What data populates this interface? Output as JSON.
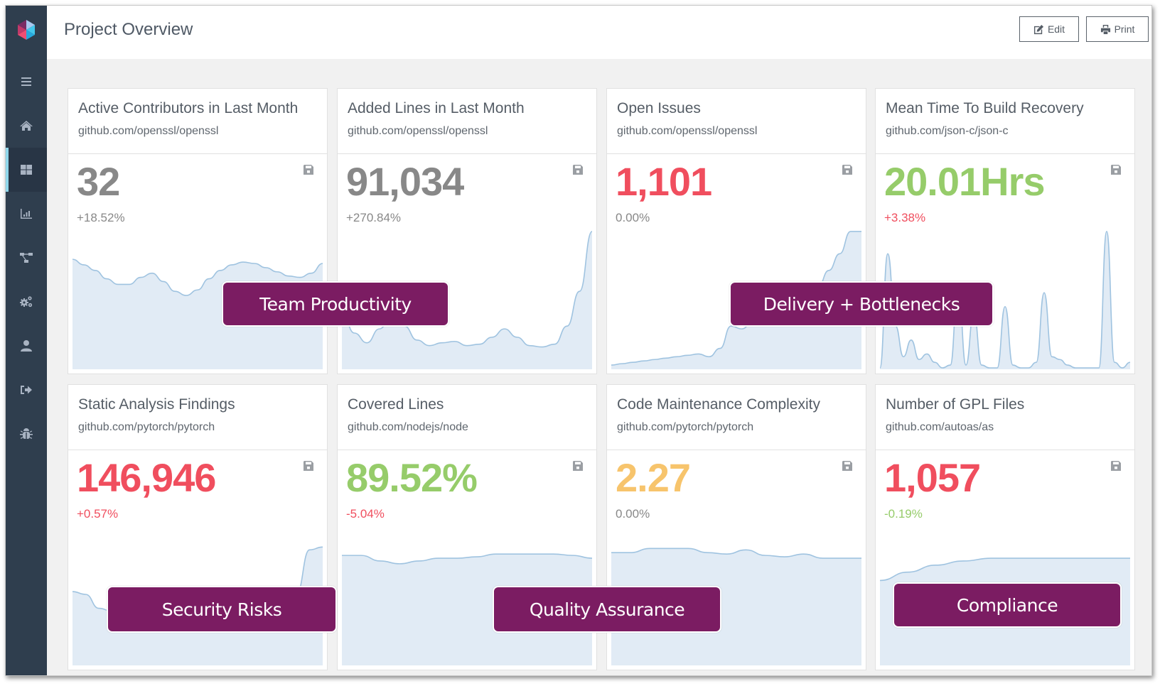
{
  "header": {
    "title": "Project Overview",
    "edit_label": "Edit",
    "print_label": "Print"
  },
  "sidebar": {
    "items": [
      {
        "name": "menu",
        "icon": "hamburger-menu-icon",
        "active": false
      },
      {
        "name": "home",
        "icon": "home-icon",
        "active": false
      },
      {
        "name": "dashboard",
        "icon": "dashboard-grid-icon",
        "active": true
      },
      {
        "name": "analytics",
        "icon": "bar-chart-icon",
        "active": false
      },
      {
        "name": "hierarchy",
        "icon": "sitemap-icon",
        "active": false
      },
      {
        "name": "settings",
        "icon": "gears-icon",
        "active": false
      },
      {
        "name": "user",
        "icon": "user-icon",
        "active": false
      },
      {
        "name": "logout",
        "icon": "sign-out-icon",
        "active": false
      },
      {
        "name": "debug",
        "icon": "bug-icon",
        "active": false
      }
    ]
  },
  "colors": {
    "sidebar_bg": "#2f3e4e",
    "active_indicator": "#8fd6ea",
    "neutral": "#888888",
    "red": "#f04e5e",
    "green": "#96cc6a",
    "orange": "#f7c46c",
    "spark_line": "#9fc3e0",
    "spark_fill": "#e1ebf5",
    "overlay": "#7b1c62"
  },
  "cards": [
    {
      "title": "Active Contributors in Last Month",
      "repo": "github.com/openssl/openssl",
      "value": "32",
      "value_color": "neutral",
      "delta": "+18.52%",
      "delta_color": "neutral",
      "series": [
        0.78,
        0.74,
        0.7,
        0.64,
        0.6,
        0.6,
        0.65,
        0.68,
        0.62,
        0.55,
        0.52,
        0.56,
        0.64,
        0.7,
        0.74,
        0.76,
        0.75,
        0.72,
        0.69,
        0.66,
        0.65,
        0.68,
        0.75
      ]
    },
    {
      "title": "Added Lines in Last Month",
      "repo": "github.com/openssl/openssl",
      "value": "91,034",
      "value_color": "neutral",
      "delta": "+270.84%",
      "delta_color": "neutral",
      "series": [
        0.4,
        0.25,
        0.18,
        0.28,
        0.38,
        0.3,
        0.2,
        0.16,
        0.18,
        0.19,
        0.16,
        0.17,
        0.22,
        0.28,
        0.22,
        0.16,
        0.15,
        0.17,
        0.3,
        0.55,
        0.98
      ]
    },
    {
      "title": "Open Issues",
      "repo": "github.com/openssl/openssl",
      "value": "1,101",
      "value_color": "red",
      "delta": "0.00%",
      "delta_color": "neutral",
      "series": [
        0.02,
        0.03,
        0.04,
        0.05,
        0.06,
        0.07,
        0.08,
        0.09,
        0.1,
        0.08,
        0.14,
        0.3,
        0.28,
        0.33,
        0.38,
        0.4,
        0.36,
        0.42,
        0.5,
        0.58,
        0.7,
        0.82,
        0.98,
        0.98
      ]
    },
    {
      "title": "Mean Time To Build Recovery",
      "repo": "github.com/json-c/json-c",
      "value": "20.01Hrs",
      "value_color": "green",
      "delta": "+3.38%",
      "delta_color": "red",
      "series": [
        0.0,
        0.82,
        0.3,
        0.08,
        0.2,
        0.06,
        0.1,
        0.04,
        0.0,
        0.02,
        0.6,
        0.02,
        0.4,
        0.02,
        0.0,
        0.0,
        0.44,
        0.02,
        0.0,
        0.0,
        0.04,
        0.54,
        0.08,
        0.06,
        0.02,
        0.0,
        0.0,
        0.0,
        0.0,
        0.98,
        0.04,
        0.0,
        0.04
      ]
    },
    {
      "title": "Static Analysis Findings",
      "repo": "github.com/pytorch/pytorch",
      "value": "146,946",
      "value_color": "red",
      "delta": "+0.57%",
      "delta_color": "red",
      "series": [
        0.52,
        0.5,
        0.4,
        0.38,
        0.38,
        0.38,
        0.38,
        0.38,
        0.38,
        0.38,
        0.38,
        0.38,
        0.38,
        0.38,
        0.38,
        0.38,
        0.38,
        0.5,
        0.82,
        0.84
      ]
    },
    {
      "title": "Covered Lines",
      "repo": "github.com/nodejs/node",
      "value": "89.52%",
      "value_color": "green",
      "delta": "-5.04%",
      "delta_color": "red",
      "series": [
        0.78,
        0.78,
        0.74,
        0.72,
        0.74,
        0.76,
        0.76,
        0.77,
        0.79,
        0.79,
        0.79,
        0.79,
        0.78,
        0.76
      ]
    },
    {
      "title": "Code Maintenance Complexity",
      "repo": "github.com/pytorch/pytorch",
      "value": "2.27",
      "value_color": "orange",
      "delta": "0.00%",
      "delta_color": "neutral",
      "series": [
        0.8,
        0.8,
        0.83,
        0.83,
        0.83,
        0.8,
        0.79,
        0.82,
        0.78,
        0.77,
        0.79,
        0.76,
        0.76,
        0.76
      ]
    },
    {
      "title": "Number of GPL Files",
      "repo": "github.com/autoas/as",
      "value": "1,057",
      "value_color": "red",
      "delta": "-0.19%",
      "delta_color": "green",
      "series": [
        0.6,
        0.66,
        0.71,
        0.74,
        0.76,
        0.76,
        0.76,
        0.76,
        0.76,
        0.76
      ]
    }
  ],
  "overlays": [
    {
      "label": "Team Productivity"
    },
    {
      "label": "Delivery + Bottlenecks"
    },
    {
      "label": "Security Risks"
    },
    {
      "label": "Quality Assurance"
    },
    {
      "label": "Compliance"
    }
  ]
}
